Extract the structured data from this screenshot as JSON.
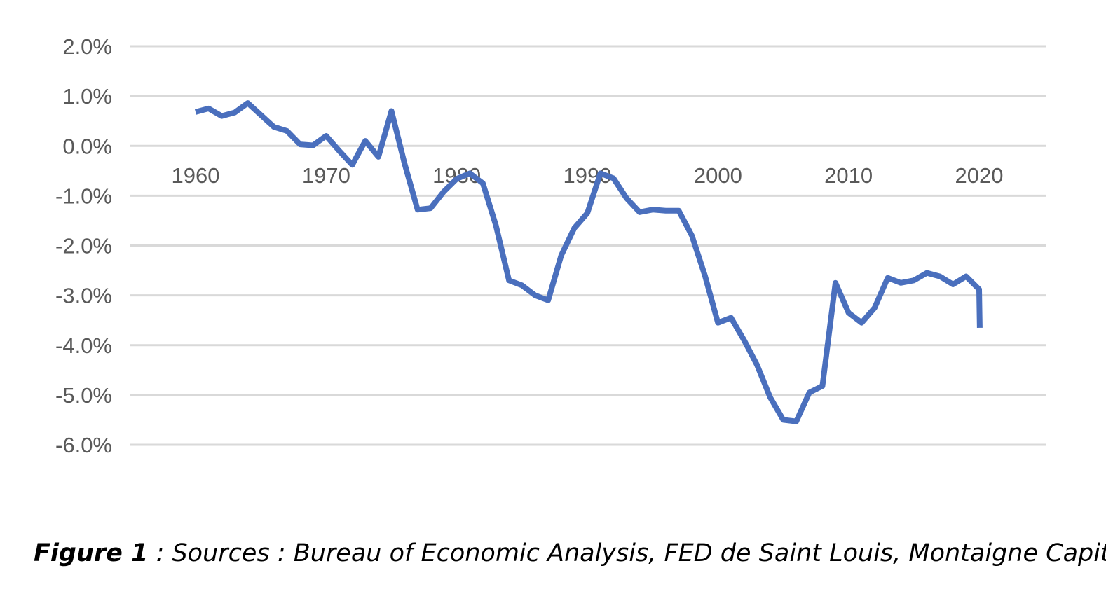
{
  "chart_data": {
    "type": "line",
    "title": "",
    "xlabel": "",
    "ylabel": "",
    "x_ticks": [
      1960,
      1970,
      1980,
      1990,
      2000,
      2010,
      2020
    ],
    "y_ticks": [
      2.0,
      1.0,
      0.0,
      -1.0,
      -2.0,
      -3.0,
      -4.0,
      -5.0,
      -6.0
    ],
    "y_tick_labels": [
      "2.0%",
      "1.0%",
      "0.0%",
      "-1.0%",
      "-2.0%",
      "-3.0%",
      "-4.0%",
      "-5.0%",
      "-6.0%"
    ],
    "xlim": [
      1959,
      2025
    ],
    "ylim": [
      -6.0,
      2.0
    ],
    "grid": true,
    "legend": "none",
    "series": [
      {
        "color": "#4a6fbd",
        "x": [
          1960,
          1961,
          1962,
          1963,
          1964,
          1965,
          1966,
          1967,
          1968,
          1969,
          1970,
          1971,
          1972,
          1973,
          1974,
          1975,
          1976,
          1977,
          1978,
          1979,
          1980,
          1981,
          1982,
          1983,
          1984,
          1985,
          1986,
          1987,
          1988,
          1989,
          1990,
          1991,
          1992,
          1993,
          1994,
          1995,
          1996,
          1997,
          1998,
          1999,
          2000,
          2001,
          2002,
          2003,
          2004,
          2005,
          2006,
          2007,
          2008,
          2009,
          2010,
          2011,
          2012,
          2013,
          2014,
          2015,
          2016,
          2017,
          2018,
          2019,
          2020,
          2020.05
        ],
        "values": [
          0.68,
          0.75,
          0.6,
          0.67,
          0.86,
          0.62,
          0.38,
          0.3,
          0.03,
          0.01,
          0.2,
          -0.1,
          -0.38,
          0.1,
          -0.22,
          0.7,
          -0.35,
          -1.28,
          -1.25,
          -0.92,
          -0.66,
          -0.55,
          -0.75,
          -1.6,
          -2.7,
          -2.8,
          -3.0,
          -3.1,
          -2.2,
          -1.65,
          -1.35,
          -0.55,
          -0.65,
          -1.05,
          -1.33,
          -1.28,
          -1.3,
          -1.3,
          -1.8,
          -2.6,
          -3.55,
          -3.45,
          -3.9,
          -4.4,
          -5.05,
          -5.5,
          -5.53,
          -4.95,
          -4.82,
          -2.75,
          -3.35,
          -3.55,
          -3.25,
          -2.65,
          -2.75,
          -2.7,
          -2.55,
          -2.62,
          -2.78,
          -2.62,
          -2.88,
          -3.65
        ]
      }
    ]
  },
  "caption": {
    "label": "Figure 1",
    "text": " : Sources : Bureau of Economic Analysis, FED de Saint Louis, Montaigne Capital."
  }
}
